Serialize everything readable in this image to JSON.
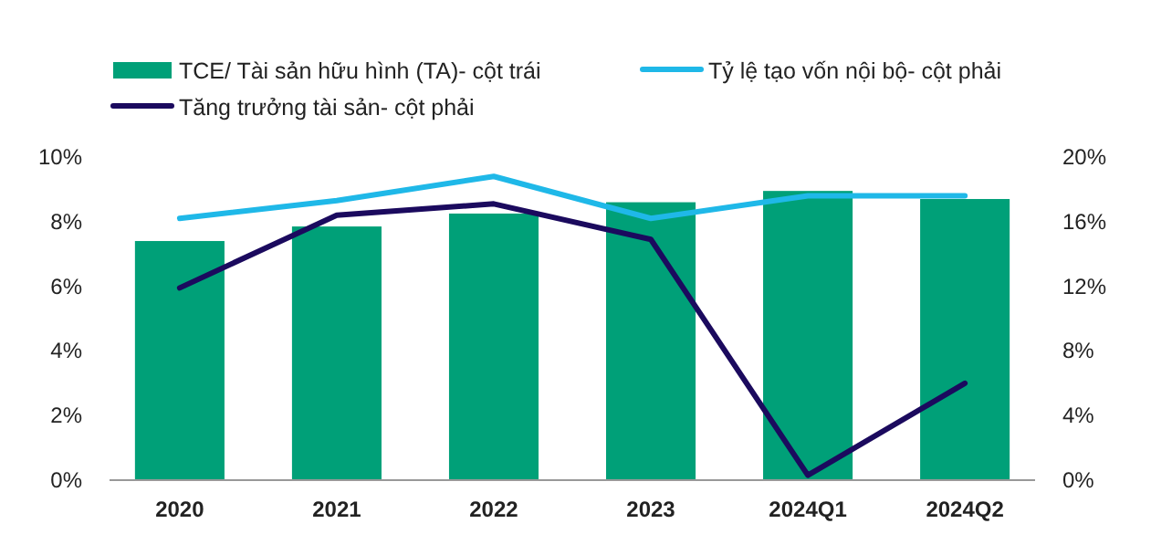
{
  "chart_data": {
    "type": "bar",
    "categories": [
      "2020",
      "2021",
      "2022",
      "2023",
      "2024Q1",
      "2024Q2"
    ],
    "series": [
      {
        "name": "TCE/ Tài sản hữu hình (TA)- cột trái",
        "color": "#00a078",
        "values": [
          7.4,
          7.85,
          8.25,
          8.6,
          8.95,
          8.7
        ]
      },
      {
        "name": "Tỷ lệ tạo vốn nội bộ- cột phải",
        "type": "line",
        "axis": "y2",
        "color": "#1fb8e8",
        "values": [
          16.2,
          17.3,
          18.8,
          16.2,
          17.6,
          17.6
        ]
      },
      {
        "name": "Tăng trưởng tài sản- cột phải",
        "type": "line",
        "axis": "y2",
        "color": "#1b0a5e",
        "values": [
          11.9,
          16.4,
          17.1,
          14.9,
          0.3,
          6.0
        ]
      }
    ],
    "ylim": [
      0,
      10
    ],
    "yticks": [
      {
        "value": 0,
        "label": "0%"
      },
      {
        "value": 2,
        "label": "2%"
      },
      {
        "value": 4,
        "label": "4%"
      },
      {
        "value": 6,
        "label": "6%"
      },
      {
        "value": 8,
        "label": "8%"
      },
      {
        "value": 10,
        "label": "10%"
      }
    ],
    "y2lim": [
      0,
      20
    ],
    "y2ticks": [
      {
        "value": 0,
        "label": "0%"
      },
      {
        "value": 4,
        "label": "4%"
      },
      {
        "value": 8,
        "label": "8%"
      },
      {
        "value": 12,
        "label": "12%"
      },
      {
        "value": 16,
        "label": "16%"
      },
      {
        "value": 20,
        "label": "20%"
      }
    ],
    "legend": "top",
    "grid": false,
    "marker": "none",
    "line_style": "solid"
  }
}
